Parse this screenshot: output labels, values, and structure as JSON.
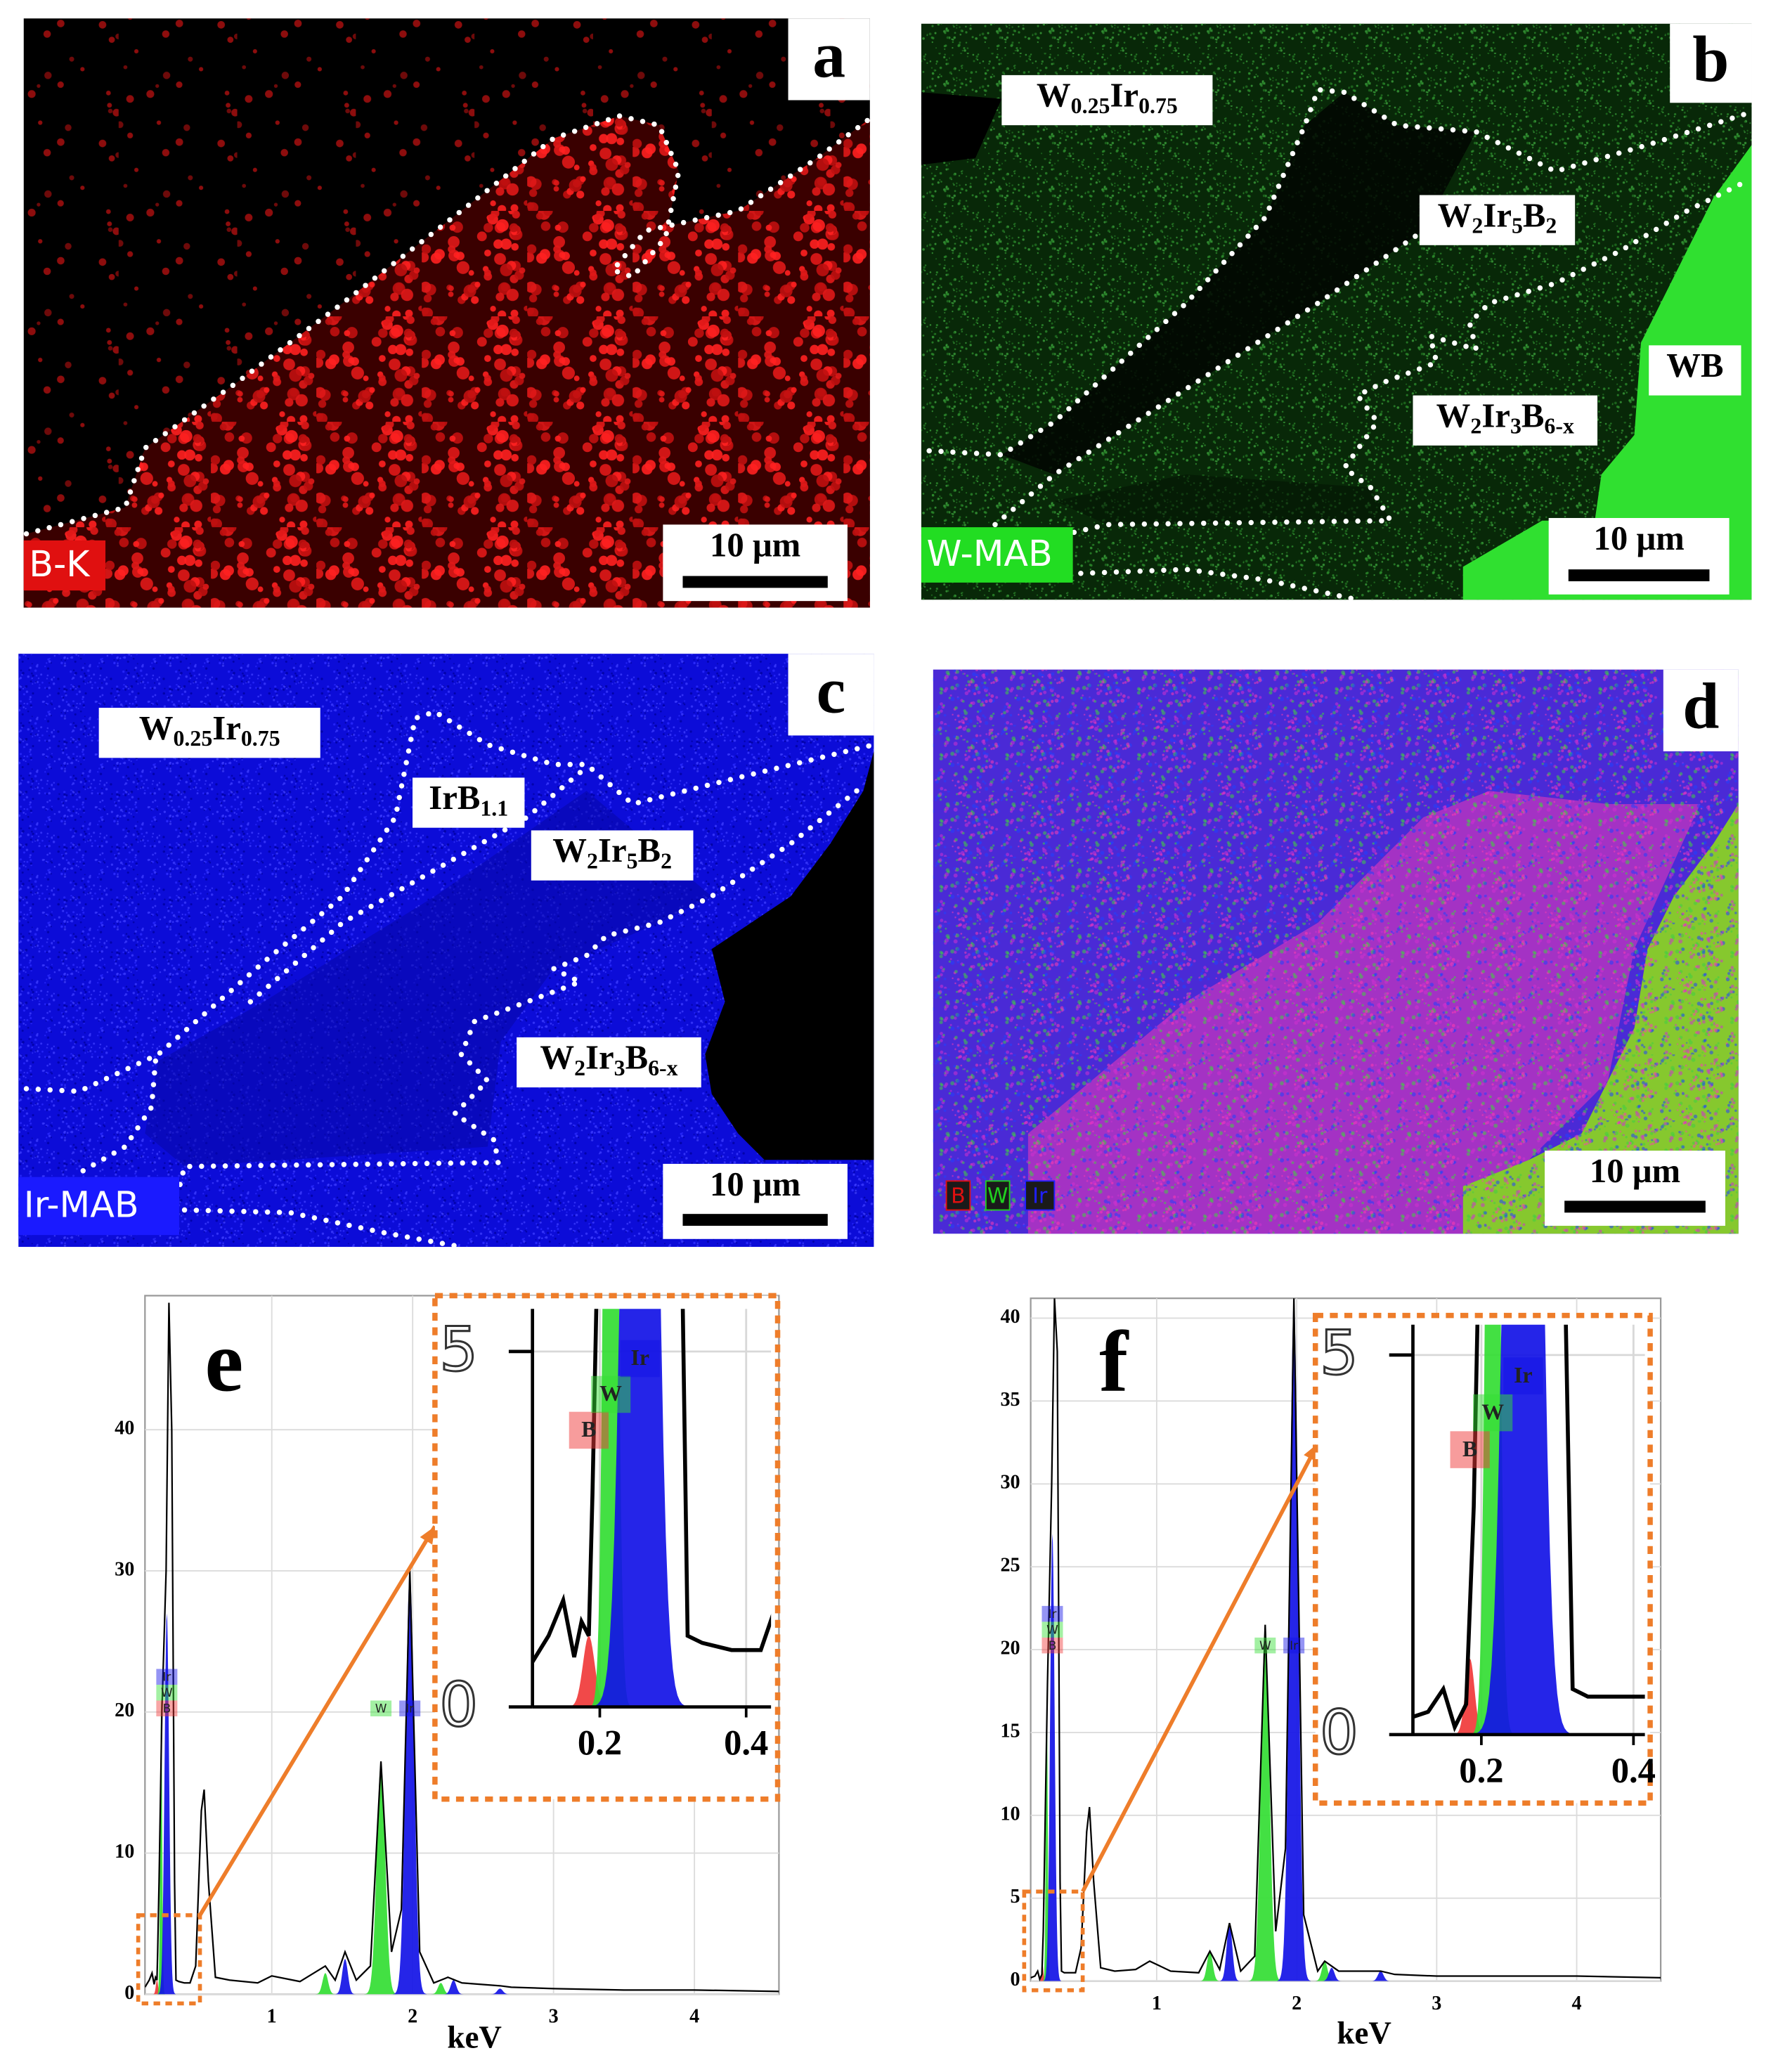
{
  "panels": [
    {
      "label": "a",
      "map_label": "B-K",
      "map_color": "#e01010",
      "scale_bar": "10 μm"
    },
    {
      "label": "b",
      "map_label": "W-MAB",
      "map_color": "#22dd22",
      "scale_bar": "10 μm",
      "phases": [
        [
          "W",
          "0.25",
          "Ir",
          "0.75"
        ],
        [
          "W",
          "2",
          "Ir",
          "5",
          "B",
          "2"
        ],
        [
          "WB"
        ],
        [
          "W",
          "2",
          "Ir",
          "3",
          "B",
          "6-x"
        ]
      ]
    },
    {
      "label": "c",
      "map_label": "Ir-MAB",
      "map_color": "#1a1aff",
      "scale_bar": "10 μm",
      "phases": [
        [
          "W",
          "0.25",
          "Ir",
          "0.75"
        ],
        [
          "IrB",
          "1.1"
        ],
        [
          "W",
          "2",
          "Ir",
          "5",
          "B",
          "2"
        ],
        [
          "W",
          "2",
          "Ir",
          "3",
          "B",
          "6-x"
        ]
      ]
    },
    {
      "label": "d",
      "scale_bar": "10 μm",
      "legend": [
        {
          "name": "B",
          "color": "#e01010"
        },
        {
          "name": "W",
          "color": "#20d020"
        },
        {
          "name": "Ir",
          "color": "#2020ff"
        }
      ]
    }
  ],
  "chart_data": [
    {
      "type": "spectrum",
      "label": "e",
      "x_label": "keV",
      "grid": true,
      "xlim": [
        0.1,
        4.6
      ],
      "xticks": [
        1,
        2,
        3,
        4
      ],
      "ylim": [
        0,
        49.5
      ],
      "yticks": [
        0,
        10,
        20,
        30,
        40
      ],
      "spectrum": {
        "color": "#000000",
        "x": [
          0.1,
          0.13,
          0.15,
          0.165,
          0.175,
          0.185,
          0.19,
          0.2,
          0.22,
          0.25,
          0.27,
          0.29,
          0.31,
          0.32,
          0.34,
          0.38,
          0.42,
          0.46,
          0.5,
          0.52,
          0.55,
          0.6,
          0.7,
          0.9,
          1.0,
          1.2,
          1.38,
          1.45,
          1.52,
          1.6,
          1.7,
          1.775,
          1.85,
          1.92,
          1.98,
          2.05,
          2.15,
          2.25,
          2.35,
          2.62,
          2.7,
          3.0,
          3.5,
          4.0,
          4.6
        ],
        "values": [
          0.5,
          1.0,
          1.5,
          0.7,
          1.2,
          1.0,
          3,
          8,
          20,
          30,
          49,
          40,
          8,
          1.0,
          0.9,
          0.8,
          0.8,
          2,
          13,
          14.5,
          8,
          1.2,
          1.0,
          0.8,
          1.3,
          0.9,
          2.0,
          1.0,
          3.0,
          1.0,
          2.0,
          16.5,
          3,
          6,
          30,
          3,
          0.8,
          1.2,
          0.8,
          0.6,
          0.5,
          0.4,
          0.3,
          0.3,
          0.2
        ]
      },
      "series": [
        {
          "name": "B",
          "color": "#f03a3a",
          "x": [
            0.185
          ],
          "values": [
            1
          ],
          "widths": [
            0.008
          ],
          "labeled": [
            true
          ]
        },
        {
          "name": "W",
          "color": "#33dd33",
          "x": [
            0.215,
            1.38,
            1.775,
            2.2
          ],
          "values": [
            21,
            1.5,
            16.5,
            0.8
          ],
          "widths": [
            0.007,
            0.02,
            0.03,
            0.02
          ],
          "labeled": [
            true,
            false,
            true,
            false
          ]
        },
        {
          "name": "Ir",
          "color": "#1212e6",
          "x": [
            0.255,
            1.52,
            1.98,
            2.29,
            2.62
          ],
          "values": [
            27,
            2.5,
            30,
            1,
            0.4
          ],
          "widths": [
            0.016,
            0.02,
            0.03,
            0.02,
            0.02
          ],
          "labeled": [
            true,
            false,
            true,
            false,
            false
          ]
        }
      ],
      "inset": {
        "xlim": [
          0.108,
          0.434
        ],
        "xticks": [
          0.2,
          0.4
        ],
        "ylim": [
          0,
          5.6
        ],
        "yticks": [
          0,
          5
        ]
      }
    },
    {
      "type": "spectrum",
      "label": "f",
      "x_label": "keV",
      "grid": true,
      "xlim": [
        0.1,
        4.6
      ],
      "xticks": [
        1,
        2,
        3,
        4
      ],
      "ylim": [
        0,
        41.2
      ],
      "yticks": [
        0,
        5,
        10,
        15,
        20,
        25,
        30,
        35,
        40
      ],
      "spectrum": {
        "color": "#000000",
        "x": [
          0.1,
          0.13,
          0.15,
          0.165,
          0.18,
          0.19,
          0.2,
          0.22,
          0.25,
          0.27,
          0.29,
          0.31,
          0.32,
          0.34,
          0.38,
          0.42,
          0.46,
          0.5,
          0.52,
          0.55,
          0.6,
          0.7,
          0.85,
          0.95,
          1.1,
          1.3,
          1.38,
          1.45,
          1.52,
          1.6,
          1.7,
          1.775,
          1.85,
          1.92,
          1.98,
          2.05,
          2.15,
          2.2,
          2.3,
          2.6,
          2.7,
          3.0,
          3.5,
          4.0,
          4.6
        ],
        "values": [
          0.2,
          0.3,
          0.6,
          0.1,
          0.4,
          3,
          8,
          18,
          30,
          41.2,
          38,
          6,
          0.6,
          0.5,
          0.5,
          0.5,
          2,
          9,
          10.5,
          6,
          0.8,
          0.6,
          0.7,
          1.2,
          0.6,
          0.5,
          1.8,
          0.7,
          3.5,
          0.6,
          1.5,
          21.5,
          3,
          8,
          41.2,
          4,
          0.6,
          1.2,
          0.6,
          0.6,
          0.4,
          0.3,
          0.3,
          0.3,
          0.2
        ]
      },
      "series": [
        {
          "name": "B",
          "color": "#f03a3a",
          "x": [
            0.185
          ],
          "values": [
            1
          ],
          "widths": [
            0.006
          ],
          "labeled": [
            true
          ]
        },
        {
          "name": "W",
          "color": "#33dd33",
          "x": [
            0.215,
            1.38,
            1.775,
            2.2
          ],
          "values": [
            17,
            1.8,
            21.5,
            1.2
          ],
          "widths": [
            0.007,
            0.02,
            0.03,
            0.02
          ],
          "labeled": [
            true,
            false,
            true,
            false
          ]
        },
        {
          "name": "Ir",
          "color": "#1212e6",
          "x": [
            0.255,
            1.52,
            1.98,
            2.25,
            2.6
          ],
          "values": [
            27,
            3.5,
            41.2,
            0.8,
            0.6
          ],
          "widths": [
            0.016,
            0.02,
            0.03,
            0.02,
            0.02
          ],
          "labeled": [
            true,
            false,
            true,
            false,
            false
          ]
        }
      ],
      "inset": {
        "xlim": [
          0.11,
          0.415
        ],
        "xticks": [
          0.2,
          0.4
        ],
        "ylim": [
          0,
          5.4
        ],
        "yticks": [
          0,
          5
        ]
      }
    }
  ]
}
